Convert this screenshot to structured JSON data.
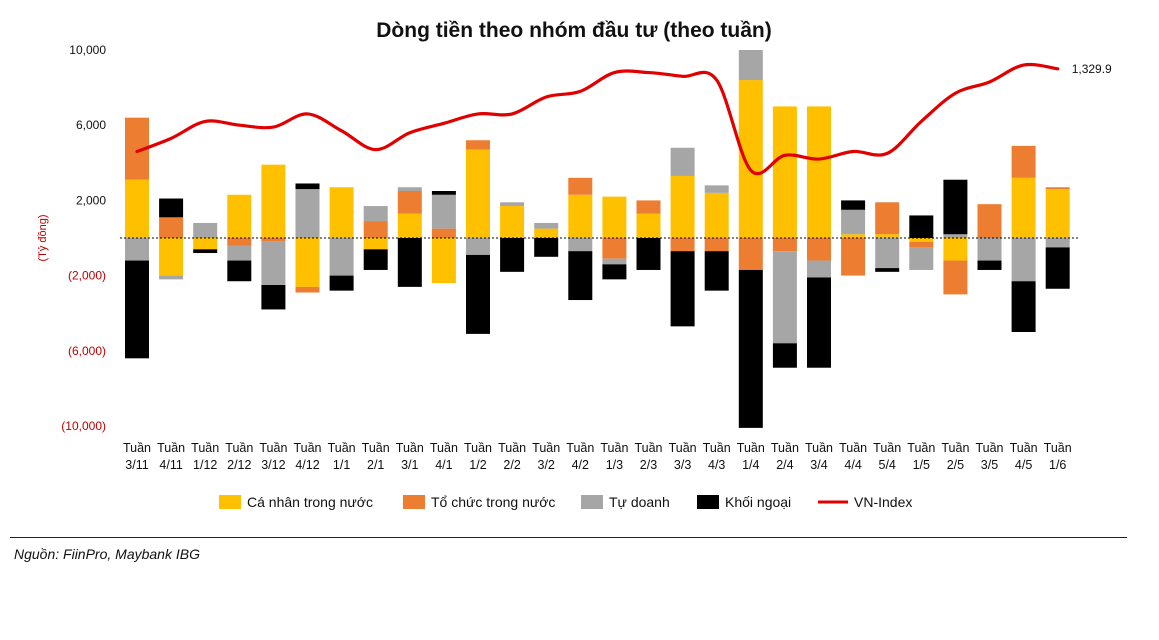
{
  "chart_data": {
    "type": "bar",
    "stacked": true,
    "title": "Dòng tiền theo nhóm đầu tư (theo tuần)",
    "ylabel": "(Tỷ đồng)",
    "ylim": [
      -10000,
      10000
    ],
    "yticks": [
      10000,
      6000,
      2000,
      -2000,
      -6000,
      -10000
    ],
    "ytick_labels": [
      "10,000",
      "6,000",
      "2,000",
      "(2,000)",
      "(6,000)",
      "(10,000)"
    ],
    "categories": [
      [
        "Tuần",
        "3/11"
      ],
      [
        "Tuần",
        "4/11"
      ],
      [
        "Tuần",
        "1/12"
      ],
      [
        "Tuần",
        "2/12"
      ],
      [
        "Tuần",
        "3/12"
      ],
      [
        "Tuần",
        "4/12"
      ],
      [
        "Tuần",
        "1/1"
      ],
      [
        "Tuần",
        "2/1"
      ],
      [
        "Tuần",
        "3/1"
      ],
      [
        "Tuần",
        "4/1"
      ],
      [
        "Tuần",
        "1/2"
      ],
      [
        "Tuần",
        "2/2"
      ],
      [
        "Tuần",
        "3/2"
      ],
      [
        "Tuần",
        "4/2"
      ],
      [
        "Tuần",
        "1/3"
      ],
      [
        "Tuần",
        "2/3"
      ],
      [
        "Tuần",
        "3/3"
      ],
      [
        "Tuần",
        "4/3"
      ],
      [
        "Tuần",
        "1/4"
      ],
      [
        "Tuần",
        "2/4"
      ],
      [
        "Tuần",
        "3/4"
      ],
      [
        "Tuần",
        "4/4"
      ],
      [
        "Tuần",
        "5/4"
      ],
      [
        "Tuần",
        "1/5"
      ],
      [
        "Tuần",
        "2/5"
      ],
      [
        "Tuần",
        "3/5"
      ],
      [
        "Tuần",
        "4/5"
      ],
      [
        "Tuần",
        "1/6"
      ]
    ],
    "series": [
      {
        "name": "Cá nhân trong nước",
        "color": "#FFC000",
        "values": [
          3100,
          -2000,
          -600,
          2300,
          3900,
          -2600,
          2700,
          -600,
          1300,
          -2400,
          4700,
          1700,
          500,
          2300,
          2200,
          1300,
          3300,
          2400,
          8400,
          7000,
          7000,
          200,
          200,
          -200,
          -1200,
          0,
          3200,
          2600
        ]
      },
      {
        "name": "Tổ chức trong nước",
        "color": "#ED7D31",
        "values": [
          3300,
          1100,
          0,
          -400,
          -200,
          -300,
          0,
          900,
          1200,
          500,
          500,
          0,
          0,
          900,
          -1100,
          700,
          -700,
          -700,
          -1700,
          -700,
          -1200,
          -2000,
          1700,
          -300,
          -1800,
          1800,
          1700,
          100
        ]
      },
      {
        "name": "Tự doanh",
        "color": "#A6A6A6",
        "values": [
          -1200,
          -200,
          800,
          -800,
          -2300,
          2600,
          -2000,
          800,
          200,
          1800,
          -900,
          200,
          300,
          -700,
          -300,
          0,
          1500,
          400,
          1600,
          -4900,
          -900,
          1300,
          -1600,
          -1200,
          200,
          -1200,
          -2300,
          -500
        ]
      },
      {
        "name": "Khối ngoại",
        "color": "#000000",
        "values": [
          -5200,
          1000,
          -200,
          -1100,
          -1300,
          300,
          -800,
          -1100,
          -2600,
          200,
          -4200,
          -1800,
          -1000,
          -2600,
          -800,
          -1700,
          -4000,
          -2100,
          -8400,
          -1300,
          -4800,
          500,
          -200,
          1200,
          2900,
          -500,
          -2700,
          -2200
        ]
      }
    ],
    "line_series": {
      "name": "VN-Index",
      "color": "#E00000",
      "values": [
        4600,
        5300,
        6200,
        6000,
        5900,
        6600,
        5700,
        4700,
        5600,
        6100,
        6600,
        6600,
        7500,
        7800,
        8800,
        8800,
        8600,
        8400,
        3600,
        4400,
        4200,
        4600,
        4500,
        6200,
        7700,
        8300,
        9200,
        9000
      ],
      "end_label": "1,329.9"
    },
    "legend": [
      "Cá nhân trong nước",
      "Tổ chức trong nước",
      "Tự doanh",
      "Khối ngoại",
      "VN-Index"
    ],
    "legend_position": "bottom",
    "zero_line": "dashed"
  },
  "source": "Nguồn: FiinPro, Maybank IBG"
}
